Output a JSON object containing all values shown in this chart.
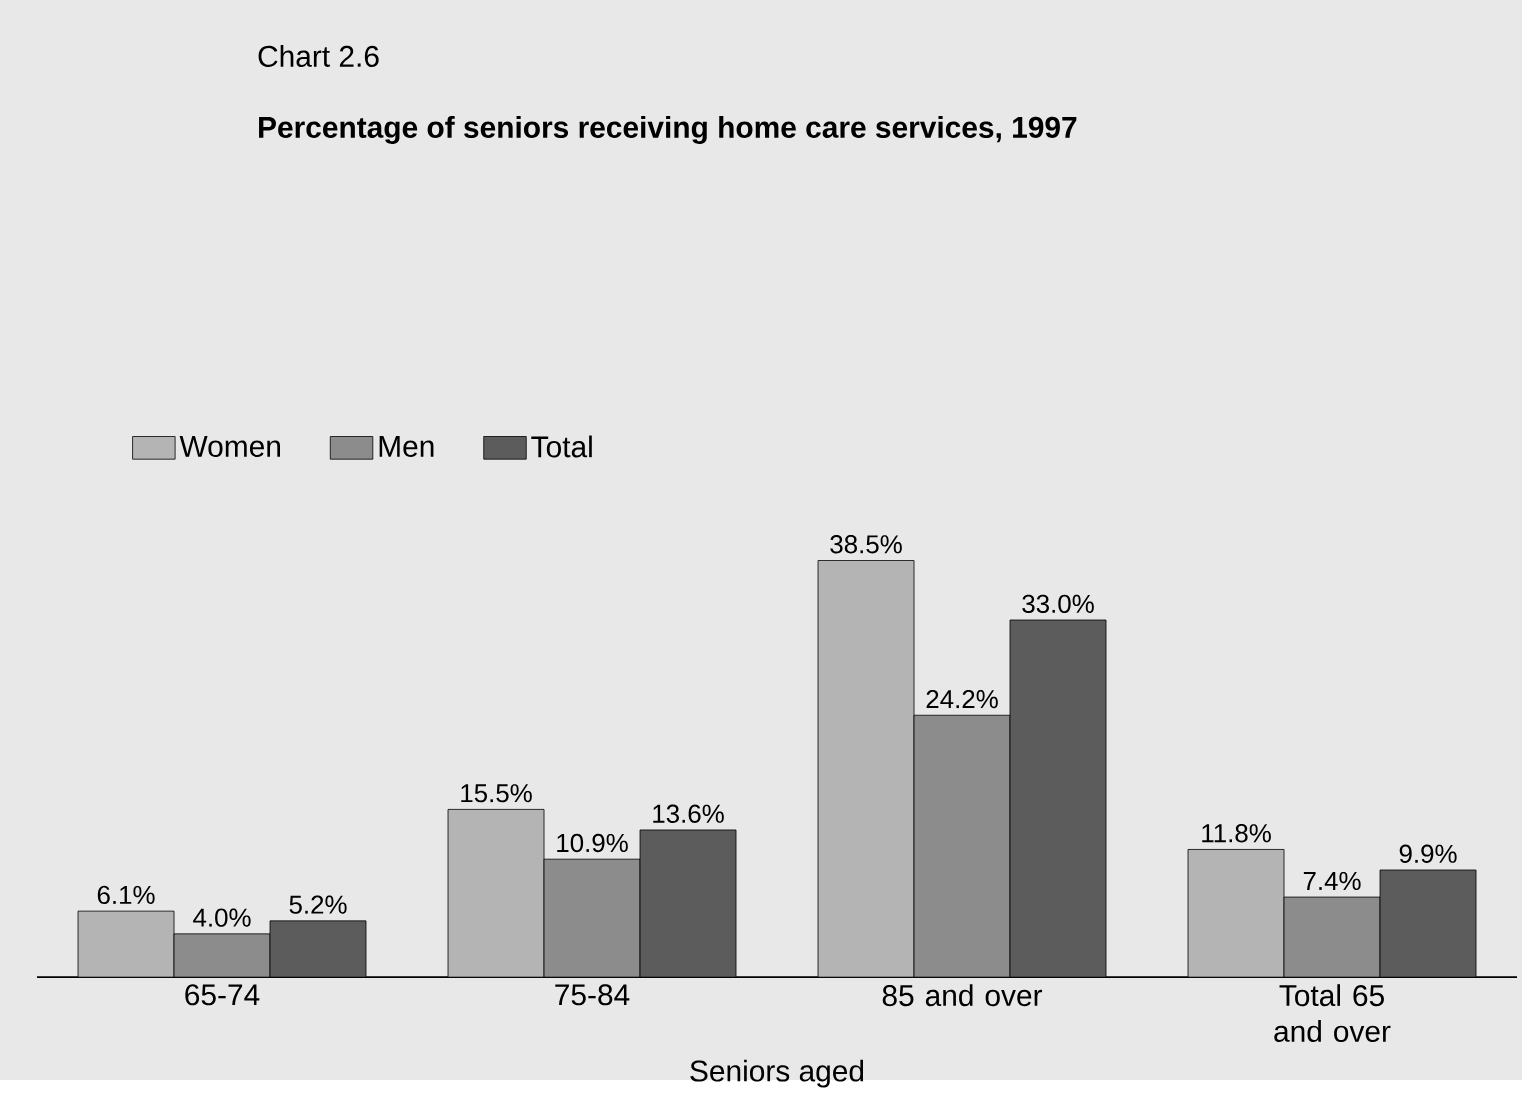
{
  "chart_data": {
    "type": "bar",
    "title": "Percentage of seniors receiving home care services, 1997",
    "annotations": [
      "Chart 2.6"
    ],
    "xlabel": "Seniors aged",
    "categories": [
      "65-74",
      "75-84",
      "85 and over",
      "Total 65 and over"
    ],
    "series": [
      {
        "name": "Women",
        "color": "#b4b4b4",
        "values": [
          6.1,
          15.5,
          38.5,
          11.8
        ],
        "value_labels": [
          "6.1%",
          "15.5%",
          "38.5%",
          "11.8%"
        ]
      },
      {
        "name": "Men",
        "color": "#8c8c8c",
        "values": [
          4.0,
          10.9,
          24.2,
          7.4
        ],
        "value_labels": [
          "4.0%",
          "10.9%",
          "24.2%",
          "7.4%"
        ]
      },
      {
        "name": "Total",
        "color": "#5c5c5c",
        "values": [
          5.2,
          13.6,
          33.0,
          9.9
        ],
        "value_labels": [
          "5.2%",
          "13.6%",
          "33.0%",
          "9.9%"
        ]
      }
    ],
    "legend": "top left"
  }
}
